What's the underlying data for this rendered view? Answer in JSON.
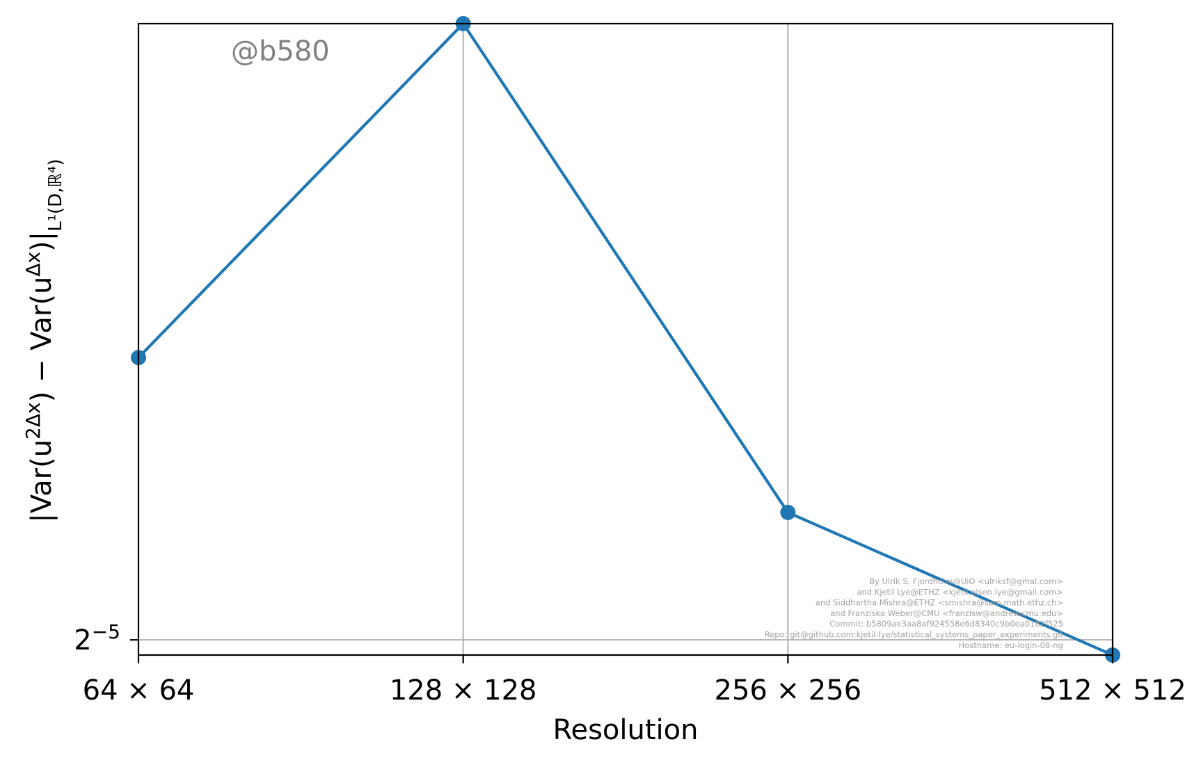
{
  "chart_data": {
    "type": "line",
    "title": "",
    "xlabel": "Resolution",
    "ylabel_parts": {
      "open": "|Var(u",
      "sup1": "2Δx",
      "mid": ") − Var(u",
      "sup2": "Δx",
      "close": ")|",
      "sub": "L¹(D,ℝ⁴)"
    },
    "yscale": "log2",
    "categories": [
      "64 × 64",
      "128 × 128",
      "256 × 256",
      "512 × 512"
    ],
    "series": [
      {
        "values": [
          0.0555,
          0.1095,
          0.0405,
          0.0303
        ],
        "color": "#1f77b4"
      }
    ],
    "y_ticks": [
      {
        "value": 0.03125,
        "label_base": "2",
        "label_exp": "−5"
      }
    ],
    "ylim": [
      0.0303,
      0.1095
    ],
    "grid": true,
    "legend": "none"
  },
  "watermark": "@b580",
  "credits": [
    "By Ulrik S. Fjordholm@UiO <ulriksf@gmal.com>",
    "and Kjetil Lye@ETHZ <kjetil.olsen.lye@gmail.com>",
    "and Siddhartha Mishra@ETHZ <smishra@sam.math.ethz.ch>",
    "and Franziska Weber@CMU <franzisw@andrew.cmu.edu>",
    "Commit: b5809ae3aa8af924558e6d8340c9b0ea0182f525",
    "Repo: git@github.com:kjetil-lye/statistical_systems_paper_experiments.git",
    "Hostname: eu-login-08-ng"
  ]
}
